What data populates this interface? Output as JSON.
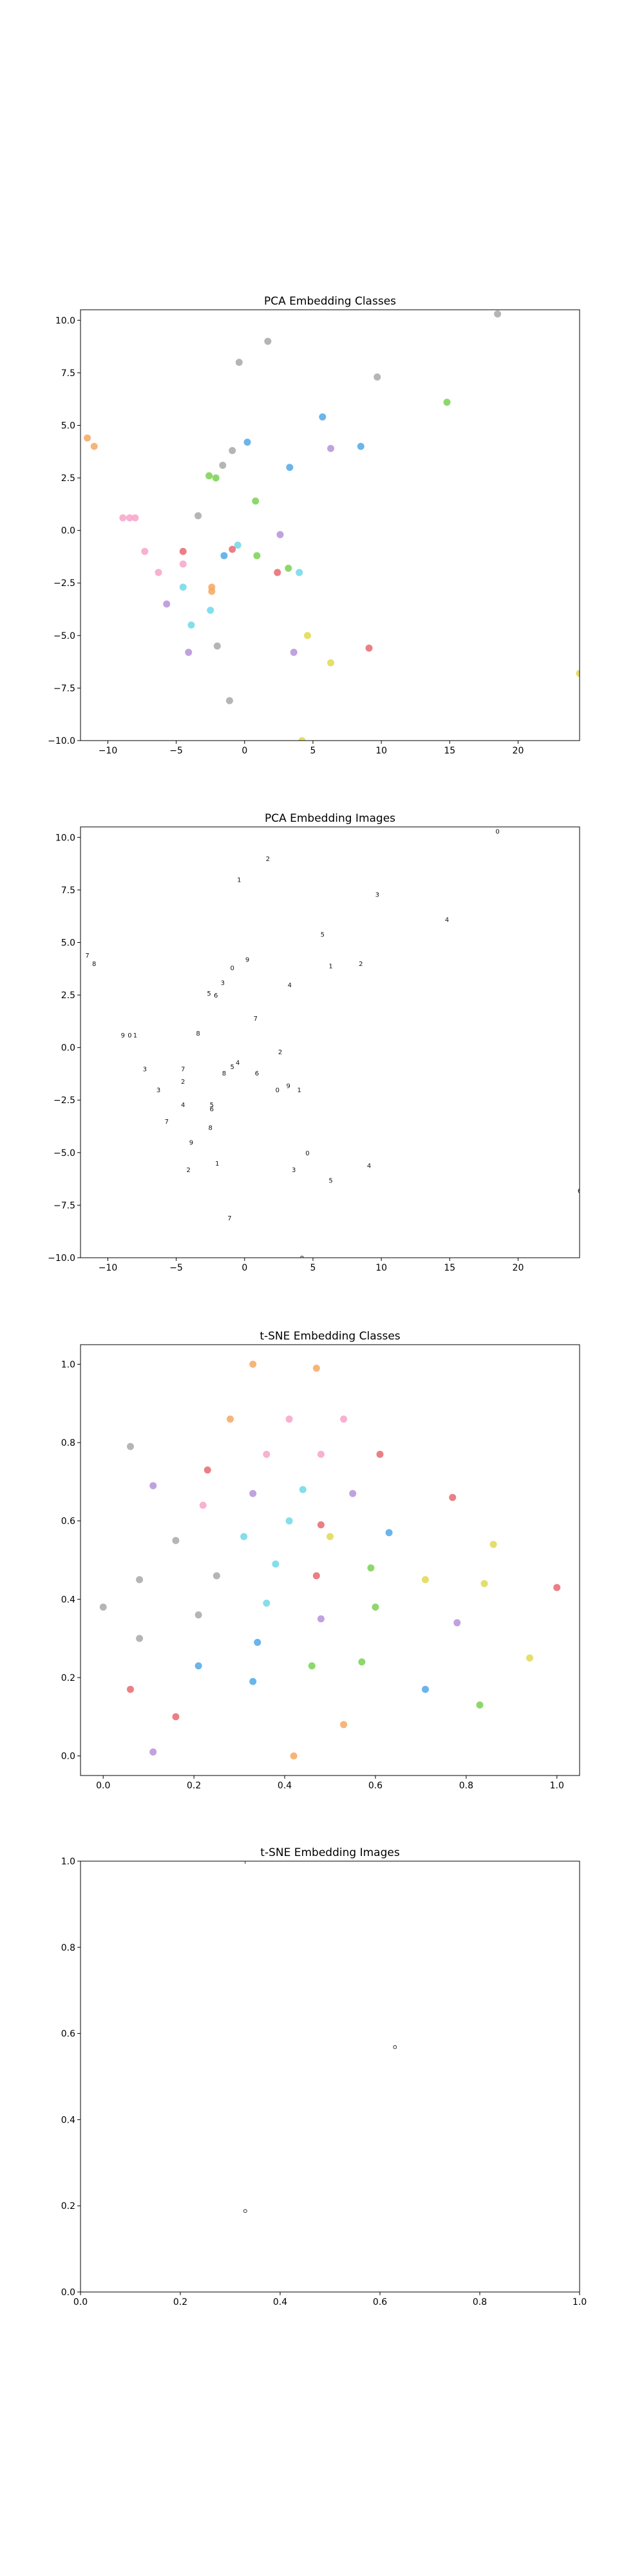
{
  "chart_data": [
    {
      "type": "scatter",
      "title": "PCA Embedding Classes",
      "xlim": [
        -12,
        24.5
      ],
      "ylim": [
        -10,
        10.5
      ],
      "xticks": [
        -10,
        -5,
        0,
        5,
        10,
        15,
        20
      ],
      "xtick_labels": [
        "−10",
        "−5",
        "0",
        "5",
        "10",
        "15",
        "20"
      ],
      "yticks": [
        -10.0,
        -7.5,
        -5.0,
        -2.5,
        0.0,
        2.5,
        5.0,
        7.5,
        10.0
      ],
      "ytick_labels": [
        "−10.0",
        "−7.5",
        "−5.0",
        "−2.5",
        "0.0",
        "2.5",
        "5.0",
        "7.5",
        "10.0"
      ],
      "points": [
        {
          "x": 18.5,
          "y": 10.3,
          "color": "#a8a8a8"
        },
        {
          "x": -0.4,
          "y": 8.0,
          "color": "#a8a8a8"
        },
        {
          "x": 1.7,
          "y": 9.0,
          "color": "#a8a8a8"
        },
        {
          "x": 9.7,
          "y": 7.3,
          "color": "#a8a8a8"
        },
        {
          "x": 14.8,
          "y": 6.1,
          "color": "#7ad151"
        },
        {
          "x": 5.7,
          "y": 5.4,
          "color": "#50a8e8"
        },
        {
          "x": -12.5,
          "y": 5.1,
          "color": "#f4a860"
        },
        {
          "x": -11.5,
          "y": 4.4,
          "color": "#f4a860"
        },
        {
          "x": -11.0,
          "y": 4.0,
          "color": "#f4a860"
        },
        {
          "x": 0.2,
          "y": 4.2,
          "color": "#50a8e8"
        },
        {
          "x": -0.9,
          "y": 3.8,
          "color": "#a8a8a8"
        },
        {
          "x": 6.3,
          "y": 3.9,
          "color": "#b592d8"
        },
        {
          "x": 8.5,
          "y": 4.0,
          "color": "#50a8e8"
        },
        {
          "x": -1.6,
          "y": 3.1,
          "color": "#a8a8a8"
        },
        {
          "x": 3.3,
          "y": 3.0,
          "color": "#50a8e8"
        },
        {
          "x": -2.6,
          "y": 2.6,
          "color": "#7ad151"
        },
        {
          "x": -2.1,
          "y": 2.5,
          "color": "#7ad151"
        },
        {
          "x": 0.8,
          "y": 1.4,
          "color": "#7ad151"
        },
        {
          "x": -3.4,
          "y": 0.7,
          "color": "#a8a8a8"
        },
        {
          "x": -8.9,
          "y": 0.6,
          "color": "#f7a3c8"
        },
        {
          "x": -8.4,
          "y": 0.6,
          "color": "#f7a3c8"
        },
        {
          "x": -8.0,
          "y": 0.6,
          "color": "#f7a3c8"
        },
        {
          "x": 2.6,
          "y": -0.2,
          "color": "#b592d8"
        },
        {
          "x": -7.3,
          "y": -1.0,
          "color": "#f7a3c8"
        },
        {
          "x": -0.5,
          "y": -0.7,
          "color": "#6ed8e8"
        },
        {
          "x": -0.9,
          "y": -0.9,
          "color": "#e8686e"
        },
        {
          "x": 0.9,
          "y": -1.2,
          "color": "#7ad151"
        },
        {
          "x": -4.5,
          "y": -1.0,
          "color": "#e8686e"
        },
        {
          "x": -1.5,
          "y": -1.2,
          "color": "#50a8e8"
        },
        {
          "x": 3.2,
          "y": -1.8,
          "color": "#7ad151"
        },
        {
          "x": 2.4,
          "y": -2.0,
          "color": "#e8686e"
        },
        {
          "x": 4.0,
          "y": -2.0,
          "color": "#6ed8e8"
        },
        {
          "x": -4.5,
          "y": -1.6,
          "color": "#f7a3c8"
        },
        {
          "x": -6.3,
          "y": -2.0,
          "color": "#f7a3c8"
        },
        {
          "x": -4.5,
          "y": -2.7,
          "color": "#6ed8e8"
        },
        {
          "x": -2.4,
          "y": -2.7,
          "color": "#f4a860"
        },
        {
          "x": -2.4,
          "y": -2.9,
          "color": "#f4a860"
        },
        {
          "x": -5.7,
          "y": -3.5,
          "color": "#b592d8"
        },
        {
          "x": -2.5,
          "y": -3.8,
          "color": "#6ed8e8"
        },
        {
          "x": -3.9,
          "y": -4.5,
          "color": "#6ed8e8"
        },
        {
          "x": 4.6,
          "y": -5.0,
          "color": "#e0d850"
        },
        {
          "x": -2.0,
          "y": -5.5,
          "color": "#a8a8a8"
        },
        {
          "x": -4.1,
          "y": -5.8,
          "color": "#b592d8"
        },
        {
          "x": 3.6,
          "y": -5.8,
          "color": "#b592d8"
        },
        {
          "x": 9.1,
          "y": -5.6,
          "color": "#e8686e"
        },
        {
          "x": 6.3,
          "y": -6.3,
          "color": "#e0d850"
        },
        {
          "x": 24.5,
          "y": -6.8,
          "color": "#e0d850"
        },
        {
          "x": -1.1,
          "y": -8.1,
          "color": "#a8a8a8"
        },
        {
          "x": 4.2,
          "y": -10.0,
          "color": "#e0d850"
        }
      ]
    },
    {
      "type": "scatter",
      "title": "PCA Embedding Images",
      "xlim": [
        -12,
        24.5
      ],
      "ylim": [
        -10,
        10.5
      ],
      "xticks": [
        -10,
        -5,
        0,
        5,
        10,
        15,
        20
      ],
      "xtick_labels": [
        "−10",
        "−5",
        "0",
        "5",
        "10",
        "15",
        "20"
      ],
      "yticks": [
        -10.0,
        -7.5,
        -5.0,
        -2.5,
        0.0,
        2.5,
        5.0,
        7.5,
        10.0
      ],
      "ytick_labels": [
        "−10.0",
        "−7.5",
        "−5.0",
        "−2.5",
        "0.0",
        "2.5",
        "5.0",
        "7.5",
        "10.0"
      ],
      "marker": "digit image thumbnails (same positions as PCA Embedding Classes)"
    },
    {
      "type": "scatter",
      "title": "t-SNE Embedding Classes",
      "xlim": [
        -0.05,
        1.05
      ],
      "ylim": [
        -0.05,
        1.05
      ],
      "xticks": [
        0.0,
        0.2,
        0.4,
        0.6,
        0.8,
        1.0
      ],
      "xtick_labels": [
        "0.0",
        "0.2",
        "0.4",
        "0.6",
        "0.8",
        "1.0"
      ],
      "yticks": [
        0.0,
        0.2,
        0.4,
        0.6,
        0.8,
        1.0
      ],
      "ytick_labels": [
        "0.0",
        "0.2",
        "0.4",
        "0.6",
        "0.8",
        "1.0"
      ],
      "points": [
        {
          "x": 0.33,
          "y": 1.0,
          "color": "#f4a860"
        },
        {
          "x": 0.47,
          "y": 0.99,
          "color": "#f4a860"
        },
        {
          "x": 0.28,
          "y": 0.86,
          "color": "#f4a860"
        },
        {
          "x": 0.41,
          "y": 0.86,
          "color": "#f7a3c8"
        },
        {
          "x": 0.53,
          "y": 0.86,
          "color": "#f7a3c8"
        },
        {
          "x": 0.06,
          "y": 0.79,
          "color": "#a8a8a8"
        },
        {
          "x": 0.36,
          "y": 0.77,
          "color": "#f7a3c8"
        },
        {
          "x": 0.48,
          "y": 0.77,
          "color": "#f7a3c8"
        },
        {
          "x": 0.61,
          "y": 0.77,
          "color": "#e8686e"
        },
        {
          "x": 0.23,
          "y": 0.73,
          "color": "#e8686e"
        },
        {
          "x": 0.11,
          "y": 0.69,
          "color": "#b592d8"
        },
        {
          "x": 0.44,
          "y": 0.68,
          "color": "#6ed8e8"
        },
        {
          "x": 0.33,
          "y": 0.67,
          "color": "#b592d8"
        },
        {
          "x": 0.55,
          "y": 0.67,
          "color": "#b592d8"
        },
        {
          "x": 0.77,
          "y": 0.66,
          "color": "#e8686e"
        },
        {
          "x": 0.22,
          "y": 0.64,
          "color": "#f7a3c8"
        },
        {
          "x": 0.41,
          "y": 0.6,
          "color": "#6ed8e8"
        },
        {
          "x": 0.48,
          "y": 0.59,
          "color": "#e8686e"
        },
        {
          "x": 0.31,
          "y": 0.56,
          "color": "#6ed8e8"
        },
        {
          "x": 0.5,
          "y": 0.56,
          "color": "#e0d850"
        },
        {
          "x": 0.63,
          "y": 0.57,
          "color": "#50a8e8"
        },
        {
          "x": 0.16,
          "y": 0.55,
          "color": "#a8a8a8"
        },
        {
          "x": 0.86,
          "y": 0.54,
          "color": "#e0d850"
        },
        {
          "x": 0.38,
          "y": 0.49,
          "color": "#6ed8e8"
        },
        {
          "x": 0.59,
          "y": 0.48,
          "color": "#7ad151"
        },
        {
          "x": 0.08,
          "y": 0.45,
          "color": "#a8a8a8"
        },
        {
          "x": 0.25,
          "y": 0.46,
          "color": "#a8a8a8"
        },
        {
          "x": 0.47,
          "y": 0.46,
          "color": "#e8686e"
        },
        {
          "x": 0.71,
          "y": 0.45,
          "color": "#e0d850"
        },
        {
          "x": 0.84,
          "y": 0.44,
          "color": "#e0d850"
        },
        {
          "x": 1.0,
          "y": 0.43,
          "color": "#e8686e"
        },
        {
          "x": 0.36,
          "y": 0.39,
          "color": "#6ed8e8"
        },
        {
          "x": 0.6,
          "y": 0.38,
          "color": "#7ad151"
        },
        {
          "x": 0.0,
          "y": 0.38,
          "color": "#a8a8a8"
        },
        {
          "x": 0.21,
          "y": 0.36,
          "color": "#a8a8a8"
        },
        {
          "x": 0.48,
          "y": 0.35,
          "color": "#b592d8"
        },
        {
          "x": 0.78,
          "y": 0.34,
          "color": "#b592d8"
        },
        {
          "x": 0.08,
          "y": 0.3,
          "color": "#a8a8a8"
        },
        {
          "x": 0.34,
          "y": 0.29,
          "color": "#50a8e8"
        },
        {
          "x": 0.21,
          "y": 0.23,
          "color": "#50a8e8"
        },
        {
          "x": 0.46,
          "y": 0.23,
          "color": "#7ad151"
        },
        {
          "x": 0.57,
          "y": 0.24,
          "color": "#7ad151"
        },
        {
          "x": 0.94,
          "y": 0.25,
          "color": "#e0d850"
        },
        {
          "x": 0.06,
          "y": 0.17,
          "color": "#e8686e"
        },
        {
          "x": 0.33,
          "y": 0.19,
          "color": "#50a8e8"
        },
        {
          "x": 0.71,
          "y": 0.17,
          "color": "#50a8e8"
        },
        {
          "x": 0.83,
          "y": 0.13,
          "color": "#7ad151"
        },
        {
          "x": 0.16,
          "y": 0.1,
          "color": "#e8686e"
        },
        {
          "x": 0.53,
          "y": 0.08,
          "color": "#f4a860"
        },
        {
          "x": 0.11,
          "y": 0.01,
          "color": "#b592d8"
        },
        {
          "x": 0.42,
          "y": 0.0,
          "color": "#f4a860"
        }
      ]
    },
    {
      "type": "scatter",
      "title": "t-SNE Embedding Images",
      "xlim": [
        0.0,
        1.0
      ],
      "ylim": [
        0.0,
        1.0
      ],
      "xticks": [
        0.0,
        0.2,
        0.4,
        0.6,
        0.8,
        1.0
      ],
      "xtick_labels": [
        "0.0",
        "0.2",
        "0.4",
        "0.6",
        "0.8",
        "1.0"
      ],
      "yticks": [
        0.0,
        0.2,
        0.4,
        0.6,
        0.8,
        1.0
      ],
      "ytick_labels": [
        "0.0",
        "0.2",
        "0.4",
        "0.6",
        "0.8",
        "1.0"
      ],
      "marker": "digit image thumbnails",
      "points": [
        {
          "x": 0.33,
          "y": 1.0,
          "glyph": "ı"
        },
        {
          "x": 0.63,
          "y": 0.57,
          "glyph": "ᴑ"
        },
        {
          "x": 0.33,
          "y": 0.19,
          "glyph": "ᴑ"
        }
      ]
    }
  ]
}
